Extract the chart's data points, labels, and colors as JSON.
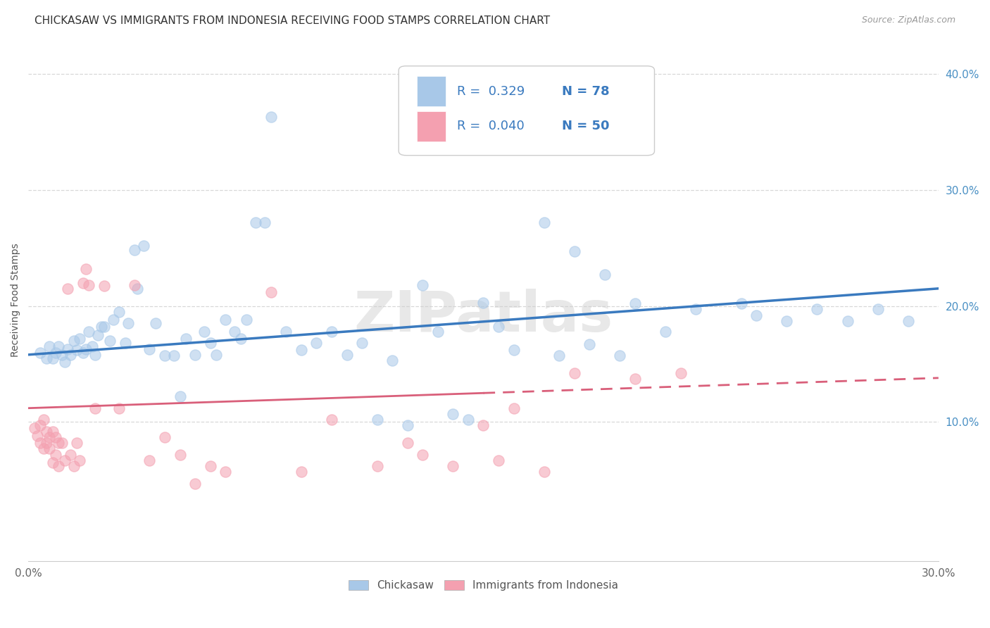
{
  "title": "CHICKASAW VS IMMIGRANTS FROM INDONESIA RECEIVING FOOD STAMPS CORRELATION CHART",
  "source": "Source: ZipAtlas.com",
  "ylabel": "Receiving Food Stamps",
  "xlim": [
    0.0,
    0.3
  ],
  "ylim": [
    -0.02,
    0.43
  ],
  "yticks": [
    0.1,
    0.2,
    0.3,
    0.4
  ],
  "ytick_labels": [
    "10.0%",
    "20.0%",
    "30.0%",
    "40.0%"
  ],
  "xticks": [
    0.0,
    0.05,
    0.1,
    0.15,
    0.2,
    0.25,
    0.3
  ],
  "legend_r1": "R =  0.329",
  "legend_n1": "N = 78",
  "legend_r2": "R =  0.040",
  "legend_n2": "N = 50",
  "blue_color": "#a8c8e8",
  "pink_color": "#f4a0b0",
  "line_blue": "#3a7abf",
  "line_pink": "#d95f7a",
  "watermark": "ZIPatlas",
  "blue_scatter_x": [
    0.004,
    0.006,
    0.007,
    0.008,
    0.009,
    0.01,
    0.011,
    0.012,
    0.013,
    0.014,
    0.015,
    0.016,
    0.017,
    0.018,
    0.019,
    0.02,
    0.021,
    0.022,
    0.023,
    0.024,
    0.025,
    0.027,
    0.028,
    0.03,
    0.032,
    0.033,
    0.035,
    0.036,
    0.038,
    0.04,
    0.042,
    0.045,
    0.048,
    0.05,
    0.052,
    0.055,
    0.058,
    0.06,
    0.062,
    0.065,
    0.068,
    0.07,
    0.072,
    0.075,
    0.078,
    0.08,
    0.085,
    0.09,
    0.095,
    0.1,
    0.105,
    0.11,
    0.115,
    0.12,
    0.125,
    0.13,
    0.135,
    0.14,
    0.145,
    0.15,
    0.155,
    0.16,
    0.17,
    0.175,
    0.18,
    0.185,
    0.19,
    0.195,
    0.2,
    0.21,
    0.22,
    0.235,
    0.24,
    0.25,
    0.26,
    0.27,
    0.28,
    0.29
  ],
  "blue_scatter_y": [
    0.16,
    0.155,
    0.165,
    0.155,
    0.16,
    0.165,
    0.158,
    0.152,
    0.163,
    0.158,
    0.17,
    0.162,
    0.172,
    0.16,
    0.163,
    0.178,
    0.165,
    0.158,
    0.175,
    0.182,
    0.182,
    0.17,
    0.188,
    0.195,
    0.168,
    0.185,
    0.248,
    0.215,
    0.252,
    0.163,
    0.185,
    0.157,
    0.157,
    0.122,
    0.172,
    0.158,
    0.178,
    0.168,
    0.158,
    0.188,
    0.178,
    0.172,
    0.188,
    0.272,
    0.272,
    0.363,
    0.178,
    0.162,
    0.168,
    0.178,
    0.158,
    0.168,
    0.102,
    0.153,
    0.097,
    0.218,
    0.178,
    0.107,
    0.102,
    0.203,
    0.182,
    0.162,
    0.272,
    0.157,
    0.247,
    0.167,
    0.227,
    0.157,
    0.202,
    0.178,
    0.197,
    0.202,
    0.192,
    0.187,
    0.197,
    0.187,
    0.197,
    0.187
  ],
  "pink_scatter_x": [
    0.002,
    0.003,
    0.004,
    0.004,
    0.005,
    0.005,
    0.006,
    0.006,
    0.007,
    0.007,
    0.008,
    0.008,
    0.009,
    0.009,
    0.01,
    0.01,
    0.011,
    0.012,
    0.013,
    0.014,
    0.015,
    0.016,
    0.017,
    0.018,
    0.019,
    0.02,
    0.022,
    0.025,
    0.03,
    0.035,
    0.04,
    0.045,
    0.05,
    0.055,
    0.06,
    0.065,
    0.08,
    0.09,
    0.1,
    0.115,
    0.125,
    0.13,
    0.14,
    0.15,
    0.155,
    0.16,
    0.17,
    0.18,
    0.2,
    0.215
  ],
  "pink_scatter_y": [
    0.095,
    0.088,
    0.097,
    0.082,
    0.102,
    0.077,
    0.082,
    0.092,
    0.077,
    0.087,
    0.092,
    0.065,
    0.087,
    0.072,
    0.082,
    0.062,
    0.082,
    0.067,
    0.215,
    0.072,
    0.062,
    0.082,
    0.067,
    0.22,
    0.232,
    0.218,
    0.112,
    0.217,
    0.112,
    0.218,
    0.067,
    0.087,
    0.072,
    0.047,
    0.062,
    0.057,
    0.212,
    0.057,
    0.102,
    0.062,
    0.082,
    0.072,
    0.062,
    0.097,
    0.067,
    0.112,
    0.057,
    0.142,
    0.137,
    0.142
  ],
  "blue_line_y_start": 0.158,
  "blue_line_y_end": 0.215,
  "pink_line_y_start": 0.112,
  "pink_line_y_end": 0.138,
  "bg_color": "#ffffff",
  "grid_color": "#d8d8d8",
  "title_fontsize": 11,
  "axis_label_fontsize": 10,
  "tick_fontsize": 11,
  "legend_fontsize": 13,
  "scatter_size": 120,
  "scatter_alpha": 0.55,
  "scatter_edge_alpha": 0.9
}
